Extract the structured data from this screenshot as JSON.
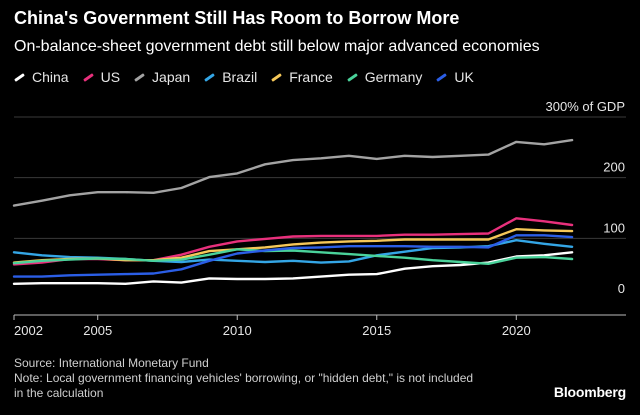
{
  "title": "China's Government Still Has Room to Borrow More",
  "subtitle": "On-balance-sheet government debt still below major advanced economies",
  "source": "Source: International Monetary Fund",
  "note": "Note: Local government financing vehicles' borrowing, or \"hidden debt,\" is not included in the calculation",
  "brand": "Bloomberg",
  "chart_data": {
    "type": "line",
    "x": [
      2002,
      2003,
      2004,
      2005,
      2006,
      2007,
      2008,
      2009,
      2010,
      2011,
      2012,
      2013,
      2014,
      2015,
      2016,
      2017,
      2018,
      2019,
      2020,
      2021,
      2022
    ],
    "xticks": [
      "2002",
      "2005",
      "2010",
      "2015",
      "2020"
    ],
    "yticks": [
      "0",
      "100",
      "200",
      "300% of GDP"
    ],
    "ylim": [
      0,
      300
    ],
    "xlim": [
      2002,
      2023
    ],
    "grid": true,
    "legend": "top-left",
    "series": [
      {
        "name": "China",
        "color": "#ffffff",
        "values": [
          25,
          26,
          26,
          26,
          25,
          29,
          27,
          34,
          33,
          33,
          34,
          37,
          40,
          41,
          50,
          54,
          56,
          60,
          70,
          72,
          77
        ]
      },
      {
        "name": "US",
        "color": "#e8307c",
        "values": [
          57,
          60,
          66,
          66,
          64,
          64,
          73,
          86,
          95,
          99,
          103,
          104,
          104,
          104,
          106,
          106,
          107,
          108,
          133,
          128,
          122
        ]
      },
      {
        "name": "Japan",
        "color": "#a3a3a3",
        "values": [
          154,
          162,
          171,
          176,
          176,
          175,
          183,
          201,
          207,
          222,
          229,
          232,
          236,
          231,
          236,
          234,
          236,
          238,
          259,
          255,
          262
        ]
      },
      {
        "name": "Brazil",
        "color": "#34a6e6",
        "values": [
          77,
          72,
          69,
          68,
          66,
          63,
          61,
          65,
          63,
          61,
          63,
          60,
          62,
          72,
          78,
          84,
          85,
          87,
          97,
          91,
          86
        ]
      },
      {
        "name": "France",
        "color": "#f5c758",
        "values": [
          60,
          64,
          66,
          67,
          64,
          64,
          68,
          79,
          82,
          85,
          90,
          93,
          95,
          96,
          98,
          98,
          98,
          98,
          115,
          113,
          112
        ]
      },
      {
        "name": "Germany",
        "color": "#4ad29a",
        "values": [
          59,
          63,
          65,
          67,
          66,
          63,
          65,
          73,
          82,
          79,
          80,
          77,
          74,
          71,
          68,
          64,
          61,
          58,
          68,
          69,
          66
        ]
      },
      {
        "name": "UK",
        "color": "#2b5ee6",
        "values": [
          37,
          37,
          39,
          40,
          41,
          42,
          49,
          63,
          75,
          80,
          84,
          85,
          87,
          87,
          87,
          86,
          86,
          85,
          105,
          105,
          102
        ]
      }
    ]
  }
}
